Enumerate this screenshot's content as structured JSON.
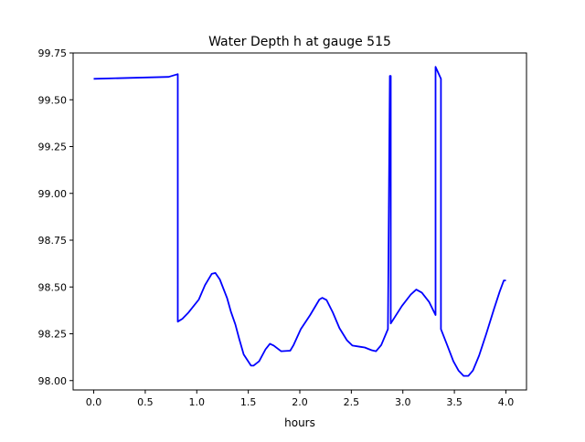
{
  "chart_data": {
    "type": "line",
    "title": "Water Depth h at gauge 515",
    "xlabel": "hours",
    "ylabel": "",
    "xlim": [
      -0.2,
      4.2
    ],
    "ylim": [
      97.95,
      99.75
    ],
    "grid": false,
    "x_ticks": [
      0.0,
      0.5,
      1.0,
      1.5,
      2.0,
      2.5,
      3.0,
      3.5,
      4.0
    ],
    "x_tick_labels": [
      "0.0",
      "0.5",
      "1.0",
      "1.5",
      "2.0",
      "2.5",
      "3.0",
      "3.5",
      "4.0"
    ],
    "y_ticks": [
      98.0,
      98.25,
      98.5,
      98.75,
      99.0,
      99.25,
      99.5,
      99.75
    ],
    "y_tick_labels": [
      "98.00",
      "98.25",
      "98.50",
      "98.75",
      "99.00",
      "99.25",
      "99.50",
      "99.75"
    ],
    "series": [
      {
        "name": "h",
        "color": "#0000ff",
        "x": [
          0,
          0.727,
          0.816,
          0.816,
          0.86,
          0.92,
          1.02,
          1.08,
          1.145,
          1.18,
          1.224,
          1.295,
          1.33,
          1.375,
          1.41,
          1.455,
          1.526,
          1.55,
          1.605,
          1.667,
          1.71,
          1.747,
          1.818,
          1.907,
          1.94,
          2.01,
          2.1,
          2.19,
          2.217,
          2.26,
          2.32,
          2.385,
          2.457,
          2.51,
          2.59,
          2.63,
          2.697,
          2.74,
          2.79,
          2.855,
          2.874,
          2.883,
          2.883,
          2.99,
          3.077,
          3.13,
          3.184,
          3.255,
          3.317,
          3.317,
          3.37,
          3.37,
          3.43,
          3.49,
          3.54,
          3.59,
          3.636,
          3.68,
          3.74,
          3.81,
          3.885,
          3.94,
          3.98,
          4.0
        ],
        "y": [
          99.612,
          99.622,
          99.637,
          98.315,
          98.33,
          98.364,
          98.433,
          98.51,
          98.57,
          98.575,
          98.54,
          98.44,
          98.37,
          98.3,
          98.226,
          98.14,
          98.08,
          98.08,
          98.103,
          98.167,
          98.197,
          98.187,
          98.157,
          98.16,
          98.19,
          98.275,
          98.35,
          98.433,
          98.442,
          98.43,
          98.364,
          98.28,
          98.216,
          98.187,
          98.18,
          98.177,
          98.162,
          98.157,
          98.19,
          98.275,
          99.627,
          99.627,
          98.305,
          98.398,
          98.46,
          98.486,
          98.47,
          98.42,
          98.35,
          99.676,
          99.612,
          98.275,
          98.19,
          98.103,
          98.054,
          98.025,
          98.025,
          98.054,
          98.133,
          98.25,
          98.383,
          98.476,
          98.535,
          98.535
        ]
      }
    ]
  }
}
